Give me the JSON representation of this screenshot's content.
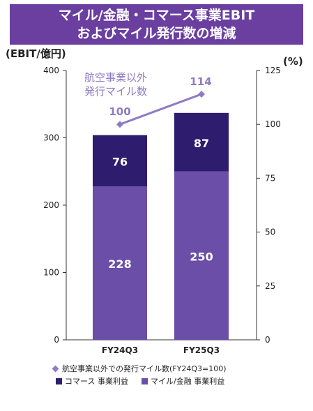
{
  "title": {
    "line1": "マイル/金融・コマース事業EBIT",
    "line2": "およびマイル発行数の増減"
  },
  "chart_data": {
    "type": "bar",
    "stacked": true,
    "categories": [
      "FY24Q3",
      "FY25Q3"
    ],
    "series": [
      {
        "name": "マイル/金融 事業利益",
        "values": [
          228,
          250
        ],
        "color": "#6a4ea8"
      },
      {
        "name": "コマース 事業利益",
        "values": [
          76,
          87
        ],
        "color": "#2e1c6e"
      }
    ],
    "line_series": {
      "name": "航空事業以外での発行マイル数(FY24Q3=100)",
      "values": [
        100,
        114
      ],
      "color": "#8f7bc4",
      "axis": "right",
      "annotation": [
        "航空事業以外",
        "発行マイル数"
      ]
    },
    "ylabel_left": "(EBIT/億円)",
    "ylabel_right": "(%)",
    "ylim_left": [
      0,
      400
    ],
    "yticks_left": [
      0,
      100,
      200,
      300,
      400
    ],
    "ylim_right": [
      0,
      125
    ],
    "yticks_right": [
      0,
      25,
      50,
      75,
      100,
      125
    ]
  },
  "legend": {
    "line_label": "航空事業以外での発行マイル数(FY24Q3=100)",
    "commerce_label": "コマース 事業利益",
    "mile_label": "マイル/金融 事業利益"
  }
}
